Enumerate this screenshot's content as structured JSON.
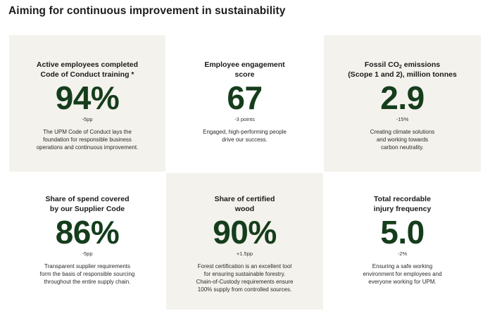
{
  "page": {
    "title": "Aiming for continuous improvement in sustainability"
  },
  "cards": [
    {
      "heading_lines": [
        "Active employees completed",
        "Code of Conduct training *"
      ],
      "value": "94%",
      "change": "-5pp",
      "desc_lines": [
        "The UPM Code of Conduct lays the",
        "foundation for responsible business",
        "operations and continuous improvement."
      ]
    },
    {
      "heading_lines": [
        "Employee engagement",
        "score"
      ],
      "value": "67",
      "change": "-3 points",
      "desc_lines": [
        "Engaged, high-performing people",
        "drive our success."
      ]
    },
    {
      "heading_line1_pre": "Fossil CO",
      "heading_line1_sub": "2",
      "heading_line1_post": " emissions",
      "heading_lines": [
        "",
        "(Scope 1 and 2), million tonnes"
      ],
      "value": "2.9",
      "change": "-15%",
      "desc_lines": [
        "Creating climate solutions",
        "and working towards",
        "carbon neutrality."
      ]
    },
    {
      "heading_lines": [
        "Share of spend covered",
        "by our Supplier Code"
      ],
      "value": "86%",
      "change": "-5pp",
      "desc_lines": [
        "Transparent supplier requirements",
        "form the basis of responsible sourcing",
        "throughout the entire supply chain."
      ]
    },
    {
      "heading_lines": [
        "Share of certified",
        "wood"
      ],
      "value": "90%",
      "change": "+1.5pp",
      "desc_lines": [
        "Forest certification is an excellent tool",
        "for ensuring sustainable forestry.",
        "Chain-of-Custody requirements ensure",
        "100% supply from controlled sources."
      ]
    },
    {
      "heading_lines": [
        "Total recordable",
        "injury frequency"
      ],
      "value": "5.0",
      "change": "-2%",
      "desc_lines": [
        "Ensuring a safe working",
        "environment for employees and",
        "everyone working for UPM."
      ]
    }
  ],
  "colors": {
    "accent_green": "#153d1c",
    "card_beige": "#f4f2ec"
  }
}
